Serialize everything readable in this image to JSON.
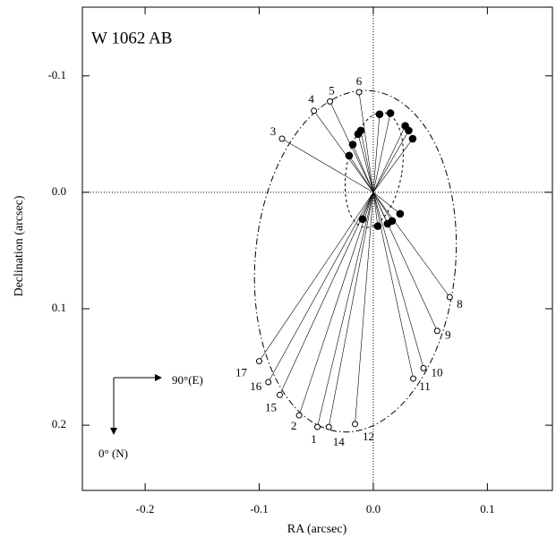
{
  "chart_data": {
    "type": "scatter",
    "title": "W 1062 AB",
    "xlabel": "RA (arcsec)",
    "ylabel": "Declination (arcsec)",
    "xlim": [
      -0.255,
      0.157
    ],
    "ylim": [
      -0.159,
      0.256
    ],
    "y_inverted": true,
    "xticks": [
      -0.2,
      -0.1,
      {
        "value": 0,
        "label": "0.0"
      },
      0.1
    ],
    "yticks": [
      -0.1,
      {
        "value": 0,
        "label": "0.0"
      },
      0.1,
      0.2
    ],
    "series": [
      {
        "marker": "open",
        "color": "#000000",
        "labels": [
          "6",
          "5",
          "4",
          "3",
          "8",
          "9",
          "10",
          "11",
          "12",
          "14",
          "1",
          "2",
          "15",
          "16",
          "17"
        ],
        "x": [
          -0.0125,
          -0.038,
          -0.052,
          -0.08,
          0.067,
          0.056,
          0.044,
          0.035,
          -0.016,
          -0.039,
          -0.049,
          -0.065,
          -0.082,
          -0.092,
          -0.1
        ],
        "values": [
          -0.086,
          -0.078,
          -0.07,
          -0.046,
          0.09,
          0.119,
          0.151,
          0.16,
          0.199,
          0.2015,
          0.2015,
          0.1915,
          0.174,
          0.163,
          0.145
        ]
      },
      {
        "marker": "filled",
        "color": "#000000",
        "x": [
          -0.0212,
          -0.018,
          -0.0133,
          -0.011,
          0.0055,
          0.015,
          0.028,
          0.031,
          0.0345,
          -0.0094,
          0.0039,
          0.0125,
          0.0165,
          0.0235
        ],
        "values": [
          -0.0315,
          -0.041,
          -0.05,
          -0.053,
          -0.067,
          -0.068,
          -0.057,
          -0.053,
          -0.046,
          0.023,
          0.029,
          0.027,
          0.0246,
          0.0185
        ]
      }
    ],
    "orbits": [
      {
        "center": [
          -0.0157,
          0.0592
        ],
        "semi_axes": [
          0.0878,
          0.147
        ],
        "angle": 5,
        "dash": "dash-dot"
      },
      {
        "center": [
          0.0008,
          -0.0192
        ],
        "semi_axes": [
          0.0243,
          0.05
        ],
        "angle": 10,
        "dash": "dashed"
      }
    ],
    "compass": {
      "east": "90°(E)",
      "north": "0° (N)"
    }
  }
}
